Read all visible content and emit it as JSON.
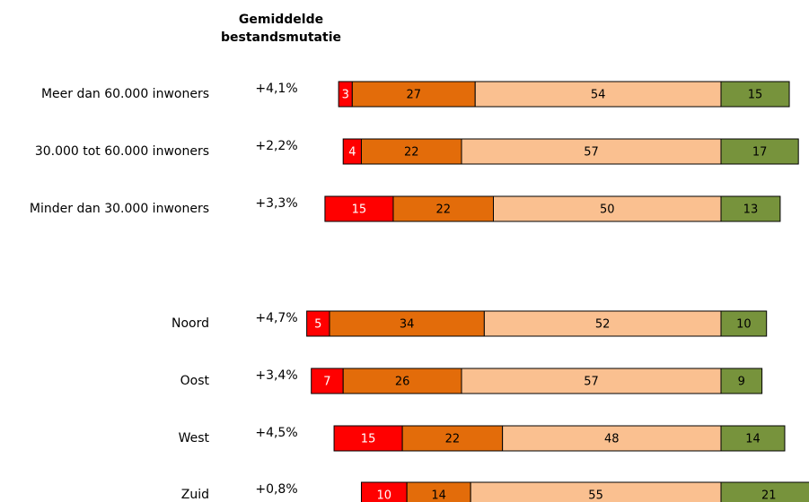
{
  "chart_data": {
    "type": "diverging_bar",
    "title": [
      "Gemiddelde",
      "bestandsmutatie"
    ],
    "categories": [
      "Meer dan 60.000 inwoners",
      "30.000 tot 60.000 inwoners",
      "Minder dan 30.000 inwoners",
      "Noord",
      "Oost",
      "West",
      "Zuid"
    ],
    "mutation_labels": [
      "+4,1%",
      "+2,2%",
      "+3,3%",
      "+4,7%",
      "+3,4%",
      "+4,5%",
      "+0,8%"
    ],
    "series": [
      {
        "color": "#ff0000",
        "values": [
          3,
          4,
          15,
          5,
          7,
          15,
          10
        ]
      },
      {
        "color": "#e36c0a",
        "values": [
          27,
          22,
          22,
          34,
          26,
          22,
          14
        ]
      },
      {
        "color": "#fac090",
        "values": [
          54,
          57,
          50,
          52,
          57,
          48,
          55
        ]
      },
      {
        "color": "#77933c",
        "values": [
          15,
          17,
          13,
          10,
          9,
          14,
          21
        ]
      }
    ]
  }
}
